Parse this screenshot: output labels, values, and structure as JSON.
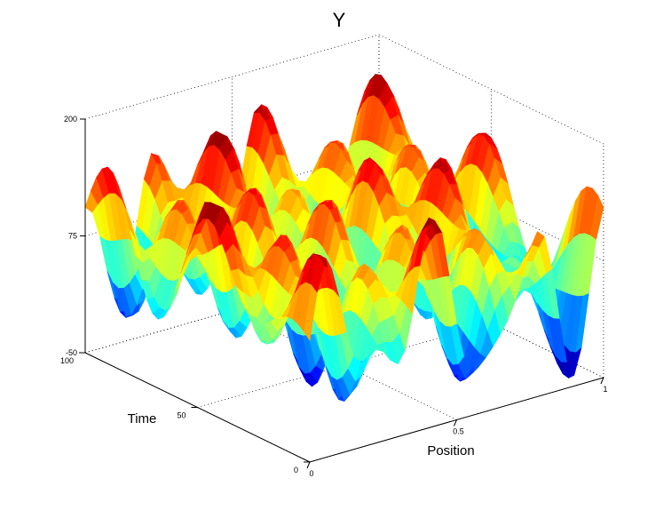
{
  "chart_data": {
    "type": "surface",
    "title": "Y",
    "xlabel": "Position",
    "ylabel": "Time",
    "zlabel": "",
    "xlim": [
      0,
      1
    ],
    "ylim": [
      0,
      100
    ],
    "zlim": [
      -50,
      200
    ],
    "xticks": [
      "0",
      "0.5",
      "1"
    ],
    "yticks": [
      "0",
      "50",
      "100"
    ],
    "zticks": [
      "-50",
      "75",
      "200"
    ],
    "grid": true,
    "colormap": "jet",
    "view": "3d",
    "surface": {
      "x_range": [
        0,
        1
      ],
      "y_range": [
        0,
        100
      ],
      "nx": 41,
      "ny": 41,
      "description_values": {
        "min": -45,
        "max": 170,
        "base_level": 80
      }
    }
  }
}
